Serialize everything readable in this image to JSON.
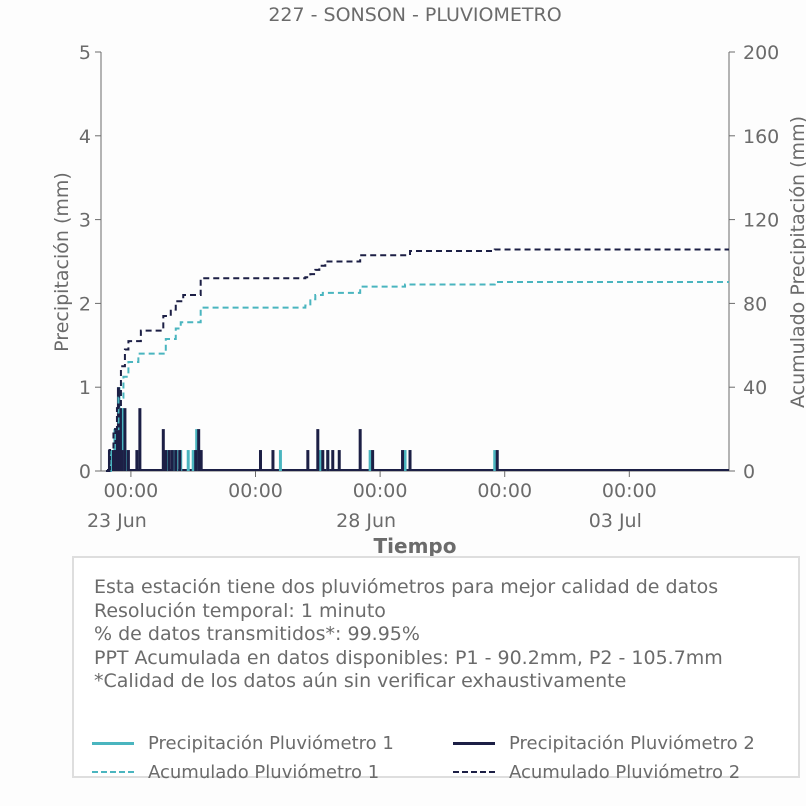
{
  "chart_data": {
    "type": "bar+line",
    "title": "227 - SONSON - PLUVIOMETRO",
    "xlabel": "Tiempo",
    "ylabel": "Precipitación (mm)",
    "y2label": "Acumulado Precipitación (mm)",
    "ylim": [
      0,
      5
    ],
    "y2lim": [
      0,
      200
    ],
    "yticks": [
      0,
      1,
      2,
      3,
      4,
      5
    ],
    "y2ticks": [
      0,
      40,
      80,
      120,
      160,
      200
    ],
    "xlim_days": [
      22.9,
      35.5
    ],
    "xticks": [
      {
        "day": 23.5,
        "label": "00:00",
        "date": "23 Jun"
      },
      {
        "day": 26.0,
        "label": "00:00",
        "date": ""
      },
      {
        "day": 28.5,
        "label": "00:00",
        "date": "28 Jun"
      },
      {
        "day": 31.0,
        "label": "00:00",
        "date": ""
      },
      {
        "day": 33.5,
        "label": "00:00",
        "date": "03 Jul"
      }
    ],
    "colors": {
      "p1": "#4ab5bf",
      "p2": "#1c1f45",
      "axis": "#6b6b6b"
    },
    "series": [
      {
        "name": "Precipitación Pluviómetro 1",
        "kind": "bar",
        "color": "#4ab5bf",
        "points": [
          [
            23.1,
            0.25
          ],
          [
            23.18,
            0.5
          ],
          [
            23.26,
            1.0
          ],
          [
            23.33,
            0.75
          ],
          [
            23.4,
            0.25
          ],
          [
            24.23,
            0.25
          ],
          [
            24.35,
            0.25
          ],
          [
            24.42,
            0.25
          ],
          [
            24.5,
            0.25
          ],
          [
            24.65,
            0.25
          ],
          [
            24.75,
            0.25
          ],
          [
            24.82,
            0.5
          ],
          [
            24.88,
            0.25
          ],
          [
            26.5,
            0.25
          ],
          [
            27.3,
            0.25
          ],
          [
            27.45,
            0.25
          ],
          [
            28.3,
            0.25
          ],
          [
            29.0,
            0.25
          ],
          [
            29.1,
            0.25
          ],
          [
            30.8,
            0.25
          ]
        ]
      },
      {
        "name": "Precipitación Pluviómetro 2",
        "kind": "bar",
        "color": "#1c1f45",
        "points": [
          [
            23.07,
            0.25
          ],
          [
            23.15,
            0.25
          ],
          [
            23.2,
            0.5
          ],
          [
            23.25,
            1.0
          ],
          [
            23.29,
            0.75
          ],
          [
            23.32,
            0.25
          ],
          [
            23.38,
            0.75
          ],
          [
            23.45,
            0.25
          ],
          [
            23.62,
            0.25
          ],
          [
            23.68,
            0.75
          ],
          [
            24.15,
            0.5
          ],
          [
            24.2,
            0.25
          ],
          [
            24.27,
            0.25
          ],
          [
            24.33,
            0.25
          ],
          [
            24.4,
            0.25
          ],
          [
            24.48,
            0.25
          ],
          [
            24.8,
            0.25
          ],
          [
            24.86,
            0.5
          ],
          [
            24.91,
            0.25
          ],
          [
            26.1,
            0.25
          ],
          [
            26.35,
            0.25
          ],
          [
            27.05,
            0.25
          ],
          [
            27.25,
            0.5
          ],
          [
            27.35,
            0.25
          ],
          [
            27.45,
            0.25
          ],
          [
            27.55,
            0.25
          ],
          [
            27.68,
            0.25
          ],
          [
            28.1,
            0.5
          ],
          [
            28.35,
            0.25
          ],
          [
            28.95,
            0.25
          ],
          [
            29.1,
            0.25
          ],
          [
            30.85,
            0.25
          ]
        ]
      },
      {
        "name": "Acumulado Pluviómetro 1",
        "kind": "step",
        "dashed": true,
        "color": "#4ab5bf",
        "points": [
          [
            23.0,
            0
          ],
          [
            23.1,
            10
          ],
          [
            23.18,
            20
          ],
          [
            23.25,
            35
          ],
          [
            23.35,
            45
          ],
          [
            23.45,
            52
          ],
          [
            23.6,
            52
          ],
          [
            23.65,
            56
          ],
          [
            24.0,
            56
          ],
          [
            24.2,
            63
          ],
          [
            24.4,
            68
          ],
          [
            24.5,
            71
          ],
          [
            24.85,
            71
          ],
          [
            24.9,
            78
          ],
          [
            26.8,
            78
          ],
          [
            27.0,
            79
          ],
          [
            27.1,
            82
          ],
          [
            27.2,
            84
          ],
          [
            27.35,
            85
          ],
          [
            28.0,
            85
          ],
          [
            28.1,
            88
          ],
          [
            28.6,
            88
          ],
          [
            28.9,
            88
          ],
          [
            29.0,
            89
          ],
          [
            30.7,
            89
          ],
          [
            30.8,
            90.2
          ],
          [
            35.5,
            90.2
          ]
        ]
      },
      {
        "name": "Acumulado Pluviómetro 2",
        "kind": "step",
        "dashed": true,
        "color": "#1c1f45",
        "points": [
          [
            23.0,
            0
          ],
          [
            23.07,
            10
          ],
          [
            23.15,
            20
          ],
          [
            23.22,
            30
          ],
          [
            23.3,
            50
          ],
          [
            23.38,
            58
          ],
          [
            23.45,
            62
          ],
          [
            23.65,
            62
          ],
          [
            23.7,
            67
          ],
          [
            24.1,
            67
          ],
          [
            24.15,
            74
          ],
          [
            24.3,
            77
          ],
          [
            24.4,
            81
          ],
          [
            24.55,
            84
          ],
          [
            24.85,
            84
          ],
          [
            24.9,
            92
          ],
          [
            26.9,
            92
          ],
          [
            27.0,
            92.5
          ],
          [
            27.1,
            94
          ],
          [
            27.2,
            96
          ],
          [
            27.28,
            98
          ],
          [
            27.4,
            100
          ],
          [
            28.0,
            100
          ],
          [
            28.1,
            103
          ],
          [
            28.6,
            103
          ],
          [
            29.0,
            103
          ],
          [
            29.1,
            105
          ],
          [
            30.7,
            105
          ],
          [
            30.8,
            105.7
          ],
          [
            35.5,
            105.7
          ]
        ]
      }
    ],
    "legend_position": "bottom, inside info box"
  },
  "info": {
    "lines": [
      "Esta estación tiene dos pluviómetros para mejor calidad de datos",
      "Resolución temporal: 1 minuto",
      "% de datos transmitidos*: 99.95%",
      "PPT Acumulada en datos disponibles: P1 - 90.2mm, P2 - 105.7mm",
      "*Calidad de los datos aún sin verificar exhaustivamente"
    ]
  },
  "legend": [
    {
      "label": "Precipitación Pluviómetro 1",
      "color": "#4ab5bf",
      "style": "solid"
    },
    {
      "label": "Precipitación Pluviómetro 2",
      "color": "#1c1f45",
      "style": "solid"
    },
    {
      "label": "Acumulado Pluviómetro 1",
      "color": "#4ab5bf",
      "style": "dashed"
    },
    {
      "label": "Acumulado Pluviómetro 2",
      "color": "#1c1f45",
      "style": "dashed"
    }
  ]
}
